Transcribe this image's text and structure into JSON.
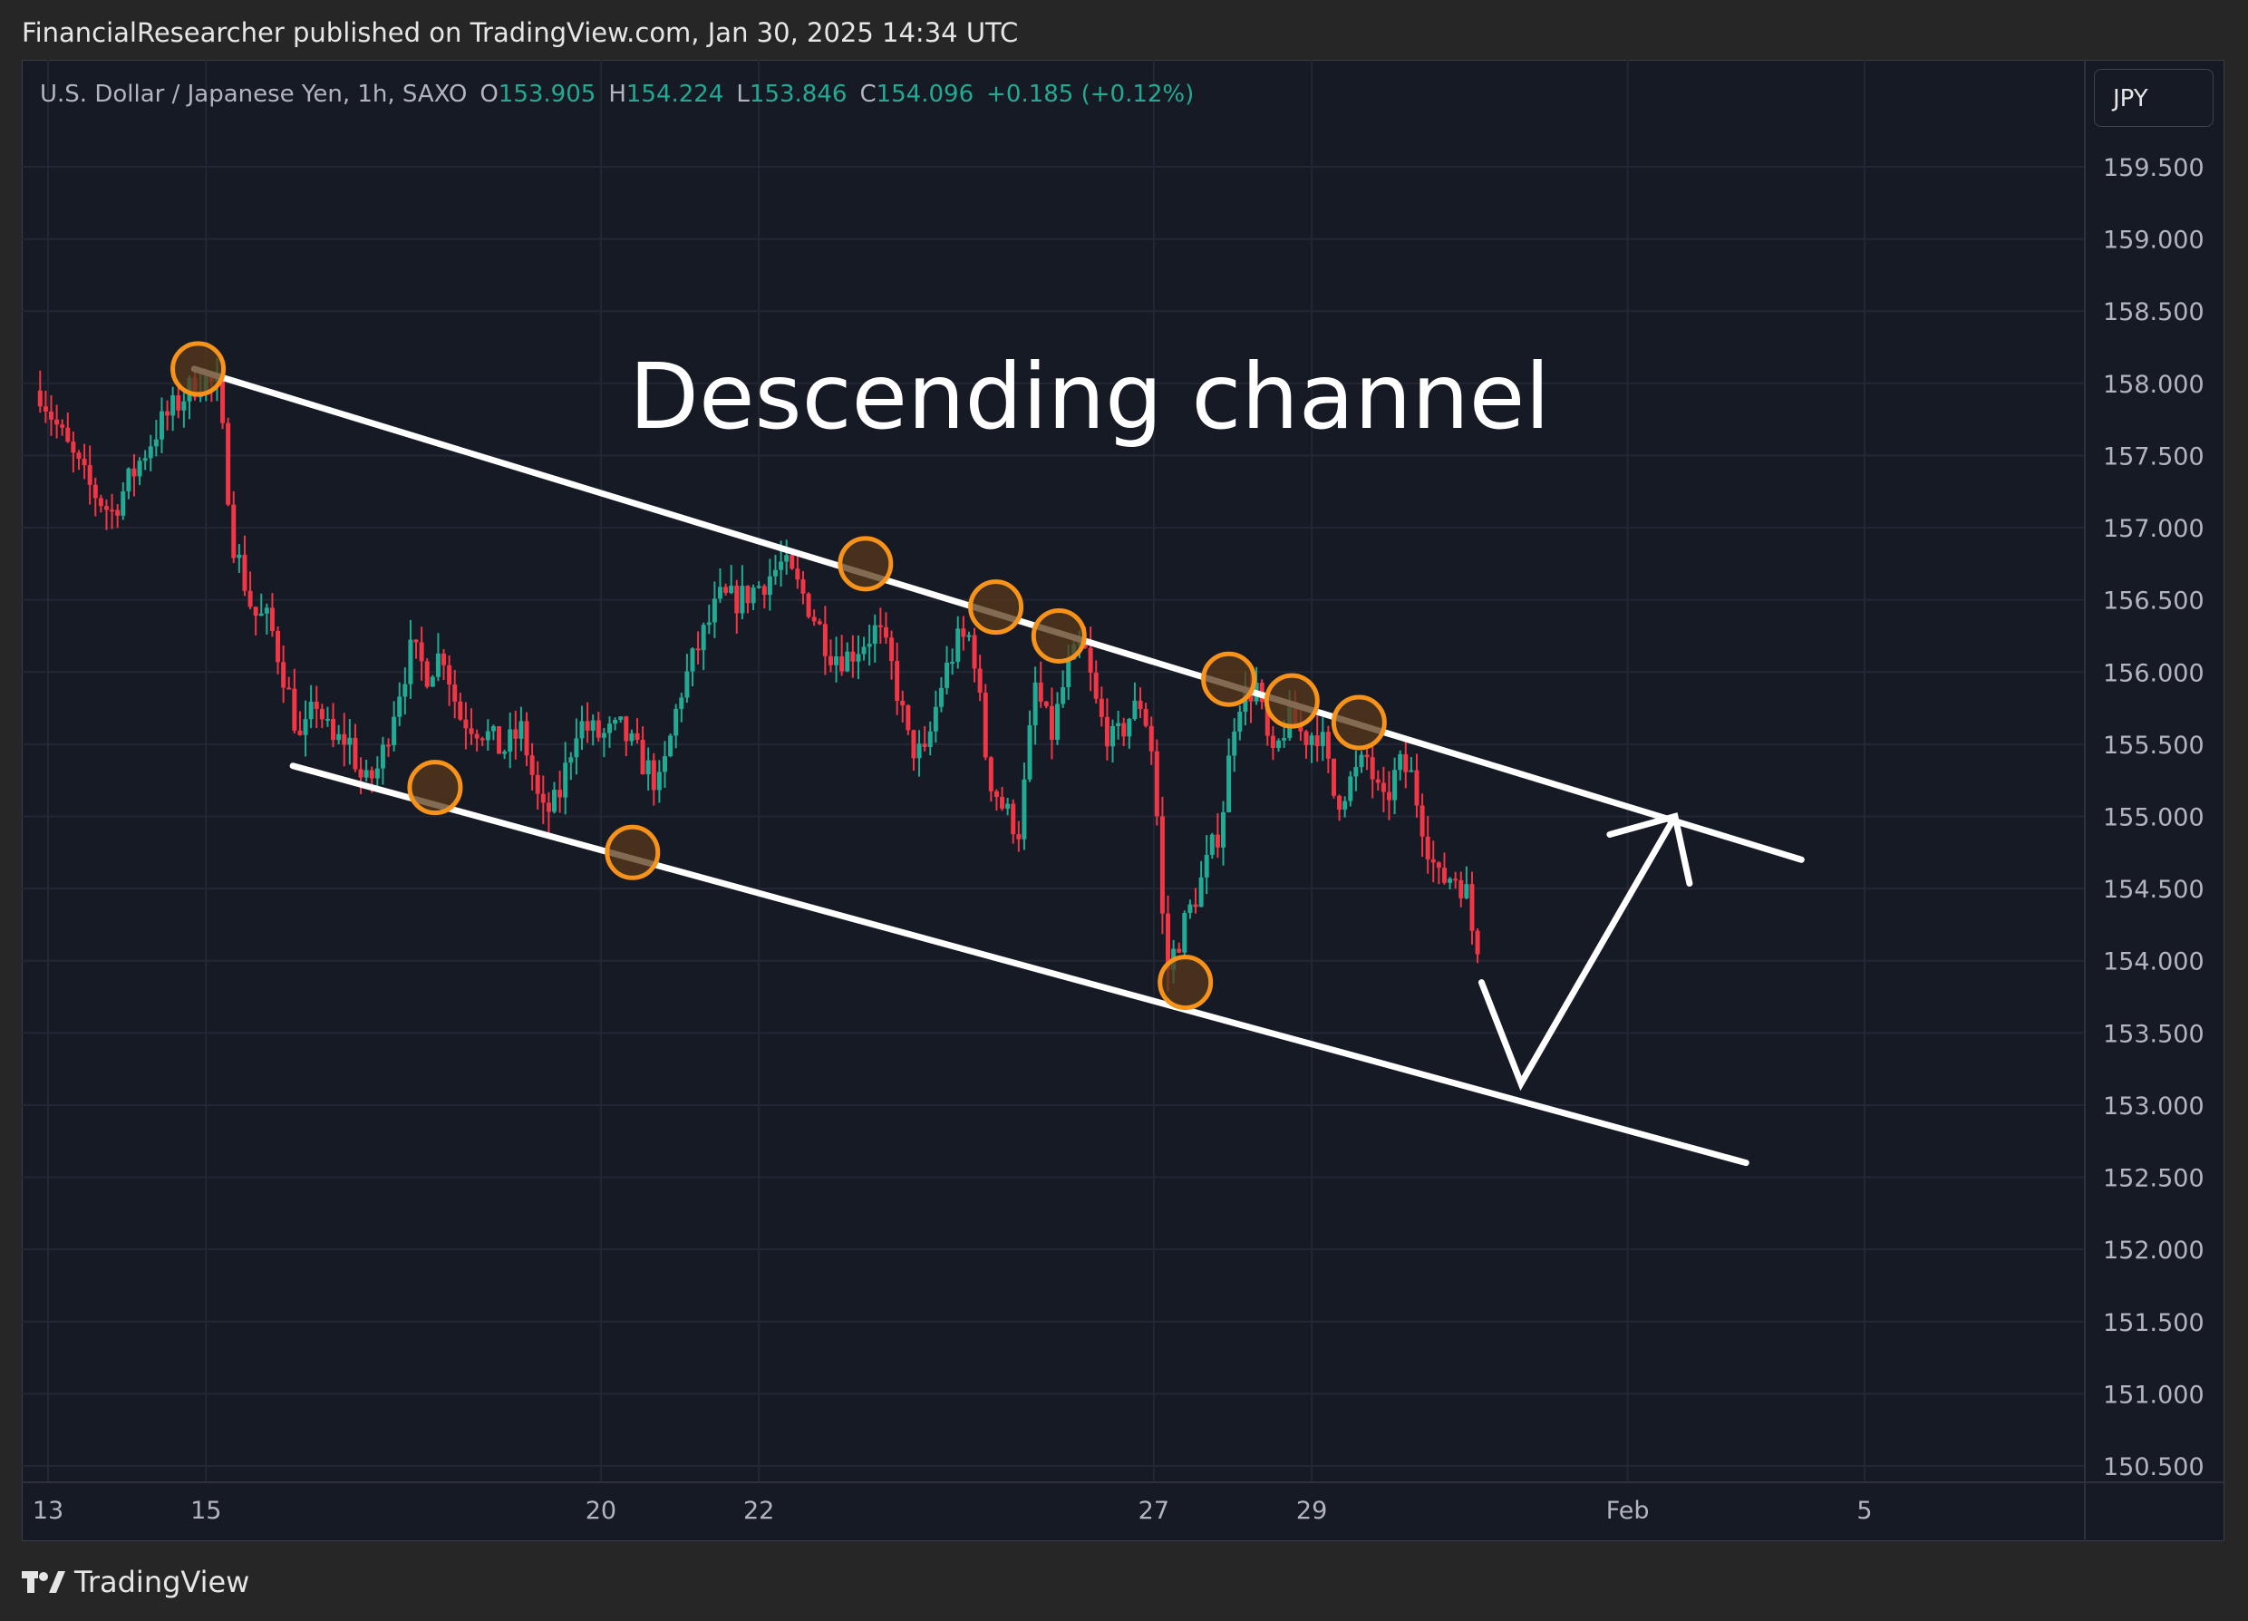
{
  "publish_line": "FinancialResearcher published on TradingView.com, Jan 30, 2025 14:34 UTC",
  "legend": {
    "symbol": "U.S. Dollar / Japanese Yen, 1h, SAXO",
    "open_label": "O",
    "open": "153.905",
    "high_label": "H",
    "high": "154.224",
    "low_label": "L",
    "low": "153.846",
    "close_label": "C",
    "close": "154.096",
    "change": "+0.185 (+0.12%)"
  },
  "currency_button": "JPY",
  "annotation_text": "Descending channel",
  "footer_brand": "TradingView",
  "colors": {
    "background": "#161a25",
    "up_candle": "#22ab94",
    "down_candle": "#f23645",
    "marker_stroke": "#f7931a",
    "marker_fill": "#5a3a1a",
    "channel_line": "#ffffff",
    "axis_text": "#b2b5be"
  },
  "chart_data": {
    "type": "candlestick",
    "title": "U.S. Dollar / Japanese Yen, 1h, SAXO",
    "y_axis": {
      "unit": "JPY",
      "range": [
        150.5,
        159.8
      ],
      "ticks": [
        "159.500",
        "159.000",
        "158.500",
        "158.000",
        "157.500",
        "157.000",
        "156.500",
        "156.000",
        "155.500",
        "155.000",
        "154.500",
        "154.000",
        "153.500",
        "153.000",
        "152.500",
        "152.000",
        "151.500",
        "151.000",
        "150.500"
      ]
    },
    "x_axis": {
      "ticks": [
        "13",
        "15",
        "20",
        "22",
        "27",
        "29",
        "Feb",
        "5"
      ]
    },
    "price_path": [
      [
        12.9,
        157.95
      ],
      [
        13.2,
        157.6
      ],
      [
        13.5,
        157.3
      ],
      [
        13.8,
        157.1
      ],
      [
        14.1,
        157.4
      ],
      [
        14.4,
        157.7
      ],
      [
        14.7,
        157.9
      ],
      [
        14.95,
        158.05
      ],
      [
        15.15,
        157.95
      ],
      [
        15.35,
        156.9
      ],
      [
        15.6,
        156.4
      ],
      [
        15.8,
        156.35
      ],
      [
        16.0,
        155.95
      ],
      [
        16.2,
        155.5
      ],
      [
        16.4,
        155.8
      ],
      [
        16.6,
        155.5
      ],
      [
        16.8,
        155.55
      ],
      [
        17.0,
        155.2
      ],
      [
        17.2,
        155.35
      ],
      [
        17.4,
        155.8
      ],
      [
        17.6,
        156.15
      ],
      [
        17.8,
        156.0
      ],
      [
        18.0,
        156.15
      ],
      [
        18.2,
        155.7
      ],
      [
        18.5,
        155.6
      ],
      [
        18.75,
        155.45
      ],
      [
        19.0,
        155.6
      ],
      [
        19.25,
        155.0
      ],
      [
        19.45,
        155.1
      ],
      [
        19.7,
        155.65
      ],
      [
        20.0,
        155.55
      ],
      [
        20.25,
        155.6
      ],
      [
        20.5,
        155.4
      ],
      [
        20.75,
        155.2
      ],
      [
        21.0,
        155.85
      ],
      [
        21.25,
        156.2
      ],
      [
        21.5,
        156.5
      ],
      [
        21.75,
        156.5
      ],
      [
        22.0,
        156.6
      ],
      [
        22.3,
        156.75
      ],
      [
        22.6,
        156.5
      ],
      [
        22.9,
        156.15
      ],
      [
        23.1,
        156.1
      ],
      [
        23.3,
        156.2
      ],
      [
        23.5,
        156.3
      ],
      [
        23.7,
        156.0
      ],
      [
        23.9,
        155.5
      ],
      [
        24.1,
        155.4
      ],
      [
        24.3,
        155.9
      ],
      [
        24.5,
        156.2
      ],
      [
        24.7,
        156.25
      ],
      [
        24.9,
        155.3
      ],
      [
        25.1,
        155.05
      ],
      [
        25.3,
        154.9
      ],
      [
        25.5,
        155.9
      ],
      [
        25.7,
        155.55
      ],
      [
        25.9,
        156.0
      ],
      [
        26.1,
        156.2
      ],
      [
        26.3,
        155.7
      ],
      [
        26.5,
        155.5
      ],
      [
        26.7,
        155.7
      ],
      [
        26.85,
        155.8
      ],
      [
        27.0,
        155.4
      ],
      [
        27.15,
        153.9
      ],
      [
        27.35,
        154.2
      ],
      [
        27.6,
        154.55
      ],
      [
        27.85,
        154.95
      ],
      [
        28.05,
        155.8
      ],
      [
        28.3,
        155.9
      ],
      [
        28.5,
        155.35
      ],
      [
        28.7,
        155.7
      ],
      [
        28.9,
        155.55
      ],
      [
        29.1,
        155.6
      ],
      [
        29.3,
        155.1
      ],
      [
        29.5,
        155.25
      ],
      [
        29.7,
        155.4
      ],
      [
        29.9,
        155.05
      ],
      [
        30.1,
        155.35
      ],
      [
        30.25,
        155.3
      ],
      [
        30.45,
        154.85
      ],
      [
        30.6,
        154.55
      ],
      [
        30.8,
        154.6
      ],
      [
        30.95,
        154.5
      ],
      [
        31.05,
        154.15
      ],
      [
        31.15,
        154.1
      ]
    ],
    "channel": {
      "upper": [
        [
          14.85,
          158.1
        ],
        [
          35.2,
          154.7
        ]
      ],
      "lower": [
        [
          16.1,
          155.35
        ],
        [
          34.5,
          152.6
        ]
      ]
    },
    "touch_points": [
      [
        14.9,
        158.1
      ],
      [
        17.9,
        155.2
      ],
      [
        20.4,
        154.75
      ],
      [
        23.35,
        156.75
      ],
      [
        25.0,
        156.45
      ],
      [
        25.8,
        156.25
      ],
      [
        27.4,
        153.85
      ],
      [
        27.95,
        155.95
      ],
      [
        28.75,
        155.8
      ],
      [
        29.6,
        155.65
      ]
    ],
    "projection_arrow": [
      [
        31.15,
        153.85
      ],
      [
        31.65,
        153.15
      ],
      [
        33.6,
        155.0
      ]
    ]
  }
}
